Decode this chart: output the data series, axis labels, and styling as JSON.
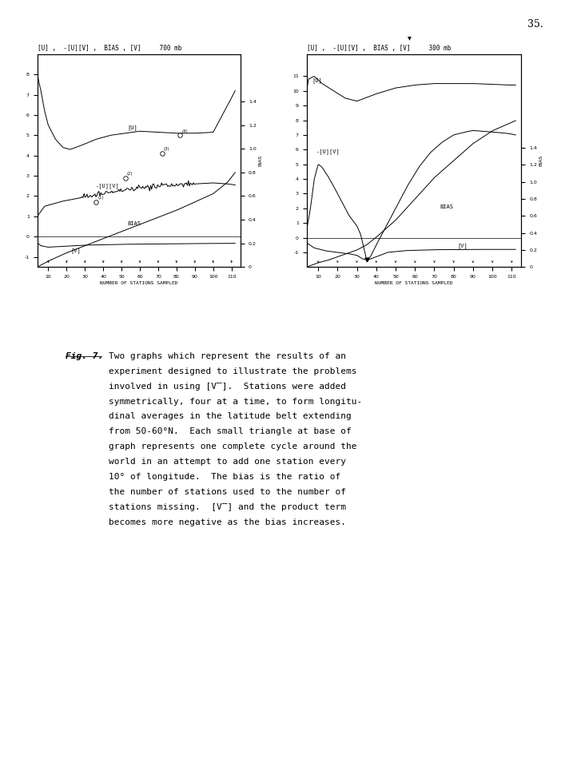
{
  "page_number": "35.",
  "graph1": {
    "title": "[U] ,  -[U][Ψ] ,  BIAS , [Ψ]     700 mb",
    "title_raw": "[U] ,  -[U][V] ,  BIAS , [V]     700mb",
    "xlabel": "NUMBER OF STATIONS SAMPLED",
    "ylim_left": [
      -1.5,
      9.0
    ],
    "ylim_right": [
      0,
      1.8
    ],
    "yticks_left": [
      -1,
      0,
      1,
      2,
      3,
      4,
      5,
      6,
      7,
      8
    ],
    "yticks_right": [
      0,
      0.2,
      0.4,
      0.6,
      0.8,
      1.0,
      1.2,
      1.4
    ],
    "xlim": [
      4,
      115
    ],
    "xticks": [
      10,
      20,
      30,
      40,
      50,
      60,
      70,
      80,
      90,
      100,
      110
    ]
  },
  "graph2": {
    "title": "[U] ,  -[U][V] ,  BIAS , [V]     300 mb",
    "title_raw": "[U] ,  -[U][V] ,  BIAS , [V]     300mb",
    "xlabel": "NUMBER OF STATIONS SAMPLED",
    "ylim_left": [
      -2.0,
      12.5
    ],
    "ylim_right": [
      0,
      2.5
    ],
    "yticks_left": [
      -1,
      0,
      1,
      2,
      3,
      4,
      5,
      6,
      7,
      8,
      9,
      10,
      11
    ],
    "yticks_right": [
      0,
      0.2,
      0.4,
      0.6,
      0.8,
      1.0,
      1.2,
      1.4
    ],
    "xlim": [
      4,
      115
    ],
    "xticks": [
      10,
      20,
      30,
      40,
      50,
      60,
      70,
      80,
      90,
      100,
      110
    ]
  },
  "caption_fig": "Fig. 7.",
  "caption_lines": [
    "Two graphs which represent the results of an",
    "experiment designed to illustrate the problems",
    "involved in using [V].  Stations were added",
    "symmetrically, four at a time, to form longitu-",
    "dinal averages in the latitude belt extending",
    "from 50-60°N.  Each small triangle at base of",
    "graph represents one complete cycle around the",
    "world in an attempt to add one station every",
    "10° of longitude.  The bias is the ratio of",
    "the number of stations used to the number of",
    "stations missing.  [V] and the product term",
    "becomes more negative as the bias increases."
  ]
}
